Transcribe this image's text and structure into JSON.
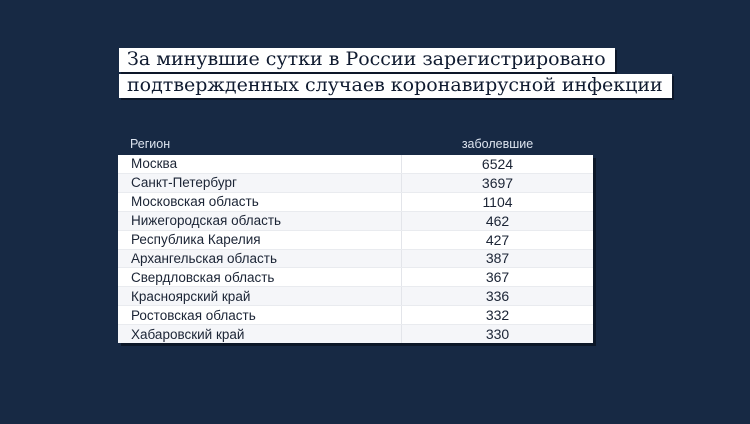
{
  "headline": {
    "line1": "За минувшие сутки в России зарегистрировано",
    "line2": "подтвержденных случаев коронавирусной инфекции"
  },
  "table": {
    "region_header": "Регион",
    "value_header": "заболевшие",
    "rows": [
      {
        "region": "Москва",
        "value": "6524"
      },
      {
        "region": "Санкт-Петербург",
        "value": "3697"
      },
      {
        "region": "Московская область",
        "value": "1104"
      },
      {
        "region": "Нижегородская область",
        "value": "462"
      },
      {
        "region": "Республика Карелия",
        "value": "427"
      },
      {
        "region": "Архангельская область",
        "value": "387"
      },
      {
        "region": "Свердловская область",
        "value": "367"
      },
      {
        "region": "Красноярский край",
        "value": "336"
      },
      {
        "region": "Ростовская область",
        "value": "332"
      },
      {
        "region": "Хабаровский край",
        "value": "330"
      }
    ]
  },
  "colors": {
    "background": "#172944",
    "headline_box": "#ffffff",
    "headline_text": "#101b30",
    "header_text": "#dde4ef",
    "row_text": "#1b2435",
    "row_alt": "#f5f6f9"
  },
  "chart_data": {
    "type": "table",
    "title": "За минувшие сутки в России зарегистрировано подтвержденных случаев коронавирусной инфекции",
    "columns": [
      "Регион",
      "заболевшие"
    ],
    "rows": [
      [
        "Москва",
        6524
      ],
      [
        "Санкт-Петербург",
        3697
      ],
      [
        "Московская область",
        1104
      ],
      [
        "Нижегородская область",
        462
      ],
      [
        "Республика Карелия",
        427
      ],
      [
        "Архангельская область",
        387
      ],
      [
        "Свердловская область",
        367
      ],
      [
        "Красноярский край",
        336
      ],
      [
        "Ростовская область",
        332
      ],
      [
        "Хабаровский край",
        330
      ]
    ]
  }
}
